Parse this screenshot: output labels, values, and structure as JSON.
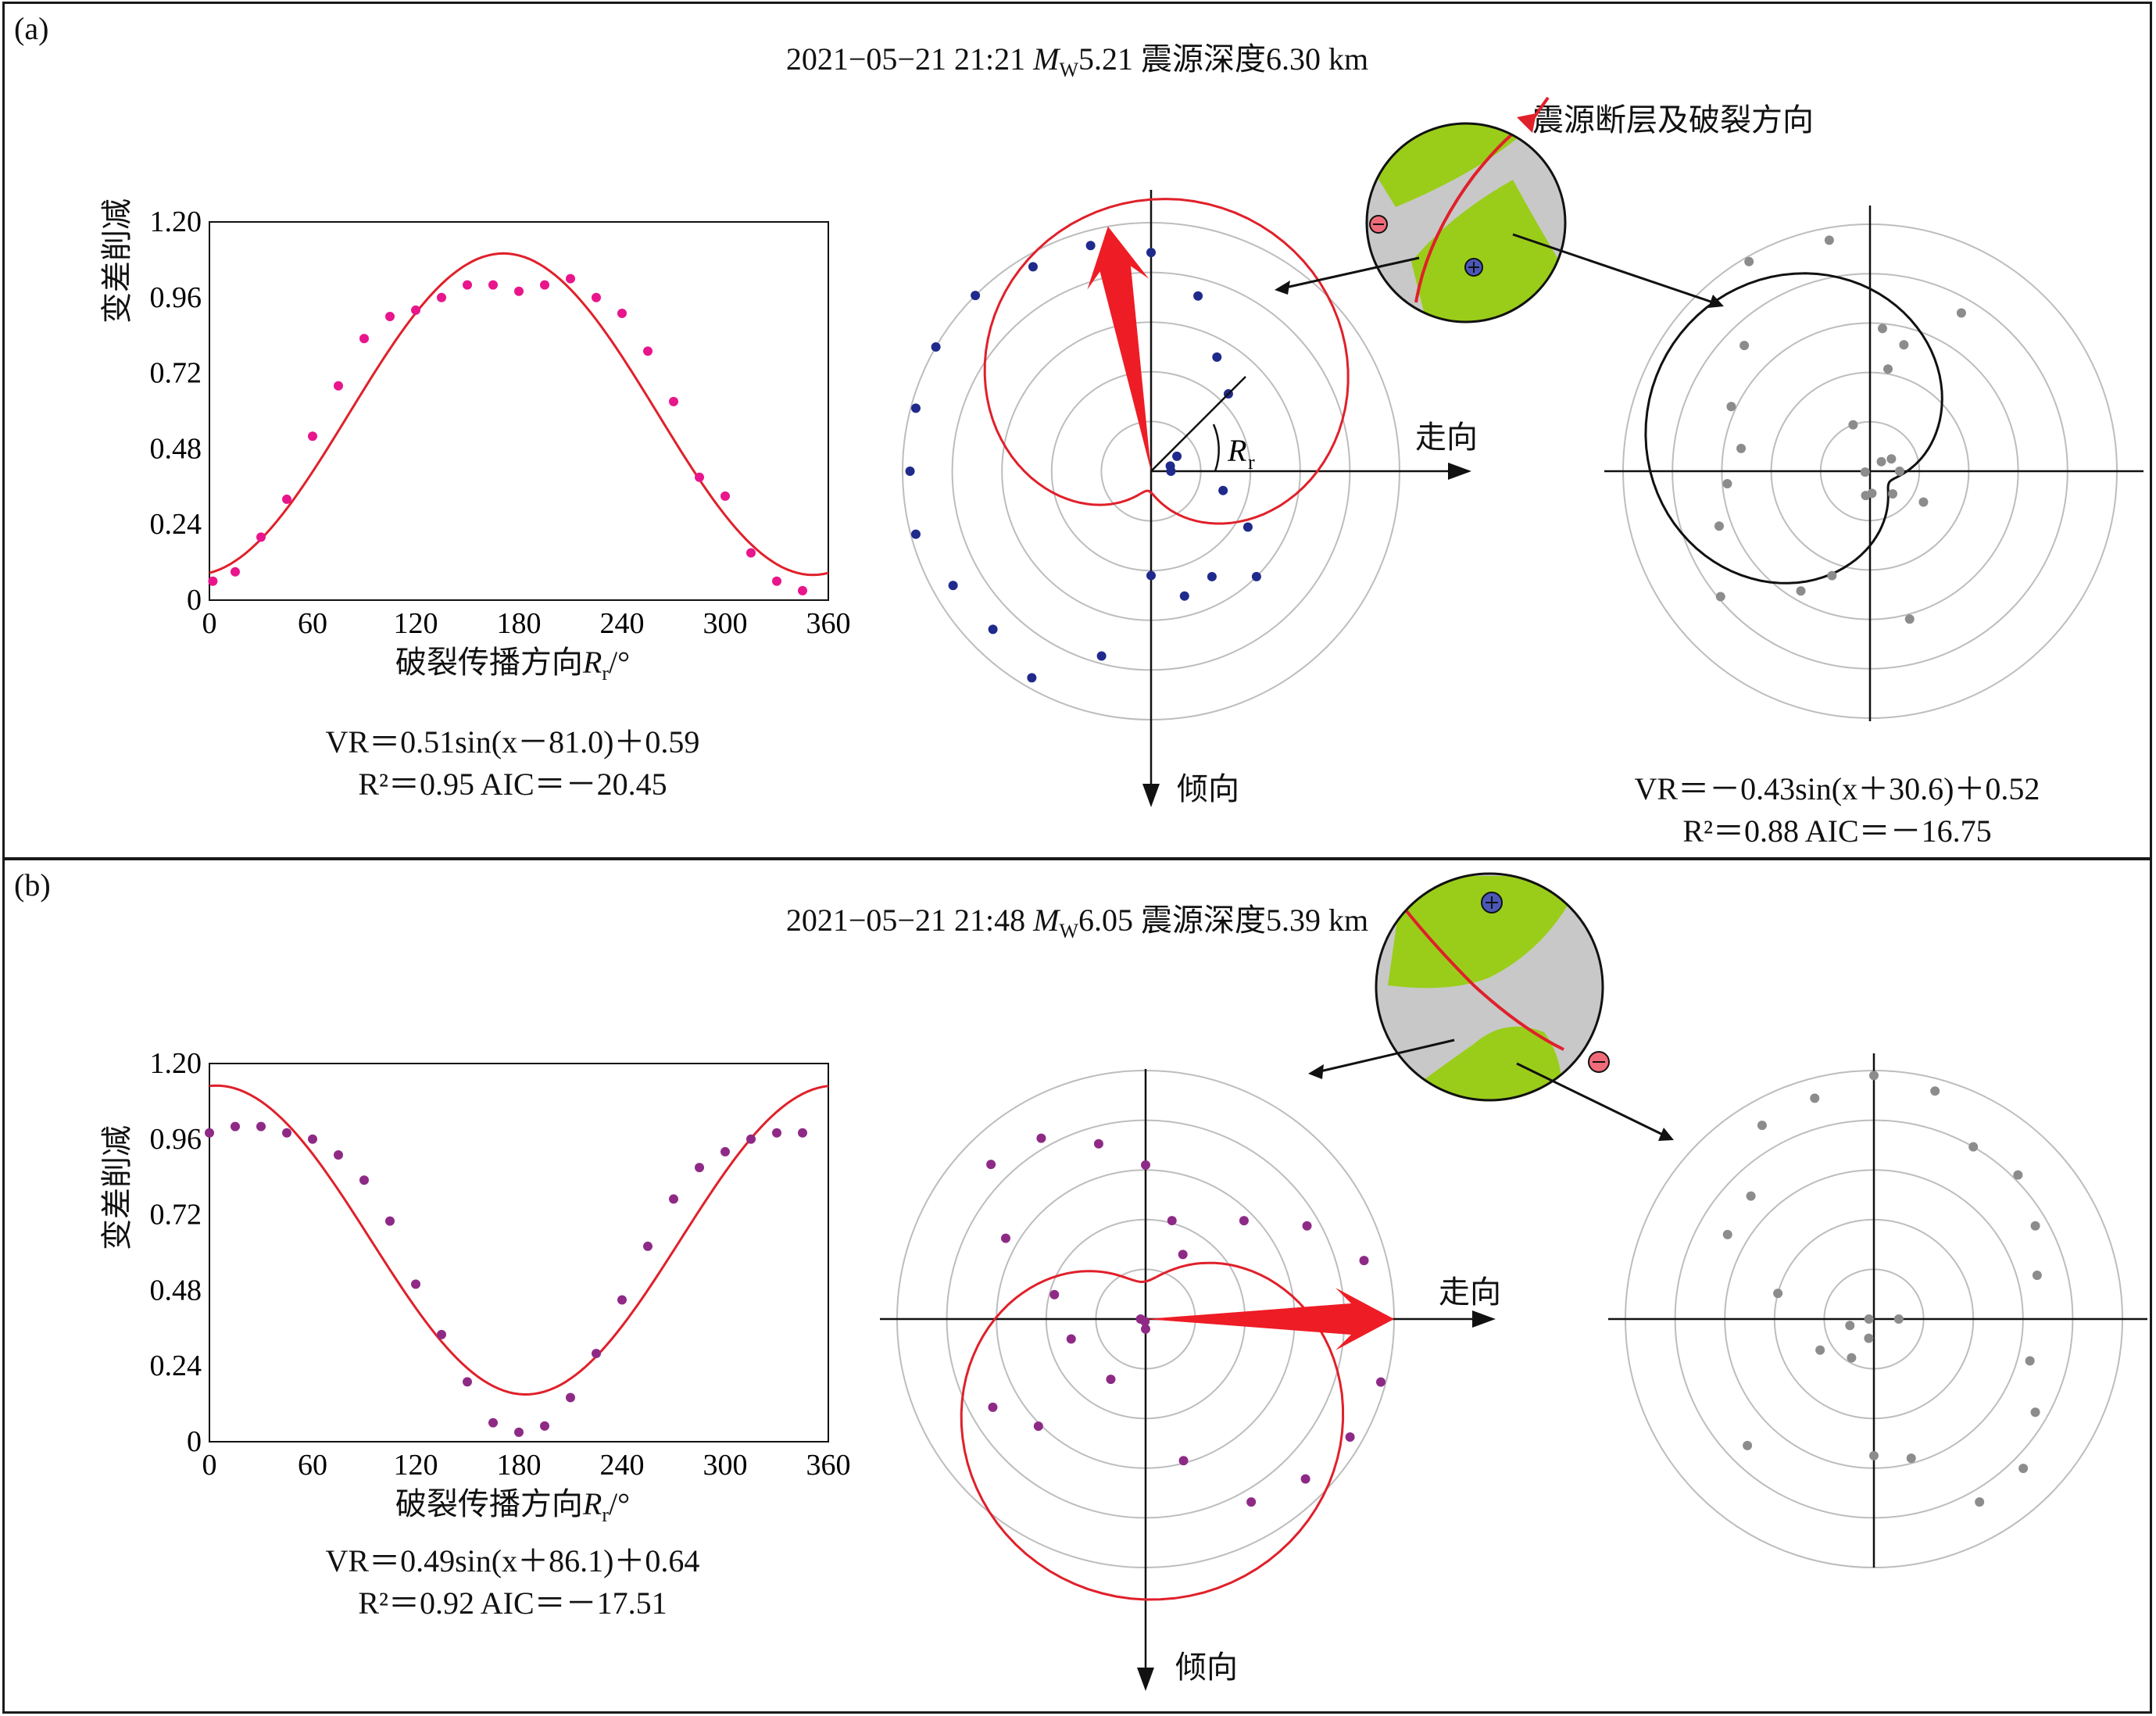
{
  "colors": {
    "fit_curve": "#e0202a",
    "arrow": "#ee1c25",
    "points_a_line": "#e8158c",
    "points_a_polar": "#1f2a8c",
    "points_b": "#8e2a86",
    "points_gray": "#8c8c8c",
    "ring": "#bdbdbd",
    "beach_green": "#9acd1a",
    "beach_gray": "#c8c8c8",
    "black_curve": "#111111"
  },
  "labels": {
    "y_axis": "变差削减",
    "x_axis_cn": "破裂传播方向",
    "x_axis_sym": "R",
    "x_axis_sub": "r",
    "x_axis_unit": "/°",
    "strike": "走向",
    "dip": "倾向",
    "rr_sym": "R",
    "rr_sub": "r",
    "fault_callout": "震源断层及破裂方向"
  },
  "panels": {
    "a": {
      "label": "(a)",
      "title_pre": "2021−05−21 21:21  ",
      "title_mw": "M",
      "title_mw_sub": "W",
      "title_post": "5.21  震源深度6.30 km",
      "eq_line1": "VR＝0.51sin(x－81.0)＋0.59",
      "eq_line2": "R²＝0.95    AIC＝－20.45",
      "eq2_line1": "VR＝－0.43sin(x＋30.6)＋0.52",
      "eq2_line2": "R²＝0.88        AIC＝－16.75"
    },
    "b": {
      "label": "(b)",
      "title_pre": "2021−05−21 21:48  ",
      "title_mw": "M",
      "title_mw_sub": "W",
      "title_post": "6.05  震源深度5.39 km",
      "eq_line1": "VR＝0.49sin(x＋86.1)＋0.64",
      "eq_line2": "R²＝0.92     AIC＝－17.51"
    }
  },
  "chart_data": [
    {
      "id": "a-line",
      "type": "scatter",
      "xlabel": "破裂传播方向Rr/°",
      "ylabel": "变差削减",
      "xlim": [
        0,
        360
      ],
      "ylim": [
        0,
        1.2
      ],
      "xticks": [
        "0",
        "60",
        "120",
        "180",
        "240",
        "300",
        "360"
      ],
      "yticks": [
        "0",
        "0.24",
        "0.48",
        "0.72",
        "0.96",
        "1.20"
      ],
      "points": [
        [
          2,
          0.06
        ],
        [
          15,
          0.09
        ],
        [
          30,
          0.2
        ],
        [
          45,
          0.32
        ],
        [
          60,
          0.52
        ],
        [
          75,
          0.68
        ],
        [
          90,
          0.83
        ],
        [
          105,
          0.9
        ],
        [
          120,
          0.92
        ],
        [
          135,
          0.96
        ],
        [
          150,
          1.0
        ],
        [
          165,
          1.0
        ],
        [
          180,
          0.98
        ],
        [
          195,
          1.0
        ],
        [
          210,
          1.02
        ],
        [
          225,
          0.96
        ],
        [
          240,
          0.91
        ],
        [
          255,
          0.79
        ],
        [
          270,
          0.63
        ],
        [
          285,
          0.39
        ],
        [
          300,
          0.33
        ],
        [
          315,
          0.15
        ],
        [
          330,
          0.06
        ],
        [
          345,
          0.03
        ]
      ],
      "fit": {
        "amplitude": 0.51,
        "phase": -81.0,
        "offset": 0.59
      }
    },
    {
      "id": "a-polar-fit",
      "type": "polar",
      "points": [
        [
          0,
          0.42
        ],
        [
          15,
          0.52
        ],
        [
          30,
          0.49
        ],
        [
          45,
          0.6
        ],
        [
          60,
          0.45
        ],
        [
          75,
          0.3
        ],
        [
          90,
          0.08
        ],
        [
          105,
          0.08
        ],
        [
          120,
          0.12
        ],
        [
          135,
          0.44
        ],
        [
          150,
          0.53
        ],
        [
          165,
          0.73
        ],
        [
          180,
          0.88
        ],
        [
          195,
          0.94
        ],
        [
          210,
          0.95
        ],
        [
          225,
          1.0
        ],
        [
          240,
          1.0
        ],
        [
          255,
          0.98
        ],
        [
          270,
          0.97
        ],
        [
          285,
          0.98
        ],
        [
          300,
          0.92
        ],
        [
          315,
          0.9
        ],
        [
          330,
          0.96
        ],
        [
          345,
          0.77
        ]
      ],
      "fit": {
        "amplitude": 0.51,
        "phase": -81.0,
        "offset": 0.59
      },
      "arrow_azimuth_deg": 190
    },
    {
      "id": "a-polar-gray",
      "type": "polar",
      "points": [
        [
          5,
          0.09
        ],
        [
          45,
          0.13
        ],
        [
          90,
          0.12
        ],
        [
          120,
          0.1
        ],
        [
          130,
          0.06
        ],
        [
          150,
          0.74
        ],
        [
          165,
          0.53
        ],
        [
          175,
          0.58
        ],
        [
          190,
          0.95
        ],
        [
          210,
          0.98
        ],
        [
          225,
          0.72
        ],
        [
          245,
          0.62
        ],
        [
          260,
          0.53
        ],
        [
          275,
          0.58
        ],
        [
          290,
          0.65
        ],
        [
          310,
          0.79
        ],
        [
          330,
          0.56
        ],
        [
          340,
          0.45
        ],
        [
          350,
          0.1
        ],
        [
          15,
          0.62
        ],
        [
          170,
          0.42
        ],
        [
          200,
          0.2
        ],
        [
          280,
          0.02
        ],
        [
          60,
          0.25
        ]
      ],
      "fit": {
        "amplitude": -0.43,
        "phase": 30.6,
        "offset": 0.52
      }
    },
    {
      "id": "b-line",
      "type": "scatter",
      "xlabel": "破裂传播方向Rr/°",
      "ylabel": "变差削减",
      "xlim": [
        0,
        360
      ],
      "ylim": [
        0,
        1.2
      ],
      "xticks": [
        "0",
        "60",
        "120",
        "180",
        "240",
        "300",
        "360"
      ],
      "yticks": [
        "0",
        "0.24",
        "0.48",
        "0.72",
        "0.96",
        "1.20"
      ],
      "points": [
        [
          0,
          0.98
        ],
        [
          15,
          1.0
        ],
        [
          30,
          1.0
        ],
        [
          45,
          0.98
        ],
        [
          60,
          0.96
        ],
        [
          75,
          0.91
        ],
        [
          90,
          0.83
        ],
        [
          105,
          0.7
        ],
        [
          120,
          0.5
        ],
        [
          135,
          0.34
        ],
        [
          150,
          0.19
        ],
        [
          165,
          0.06
        ],
        [
          180,
          0.03
        ],
        [
          195,
          0.05
        ],
        [
          210,
          0.14
        ],
        [
          225,
          0.28
        ],
        [
          240,
          0.45
        ],
        [
          255,
          0.62
        ],
        [
          270,
          0.77
        ],
        [
          285,
          0.87
        ],
        [
          300,
          0.92
        ],
        [
          315,
          0.96
        ],
        [
          330,
          0.98
        ],
        [
          345,
          0.98
        ]
      ],
      "fit": {
        "amplitude": 0.49,
        "phase": 86.1,
        "offset": 0.64
      }
    },
    {
      "id": "b-polar-fit",
      "type": "polar",
      "points": [
        [
          0,
          0.04
        ],
        [
          15,
          0.59
        ],
        [
          30,
          0.85
        ],
        [
          45,
          0.91
        ],
        [
          60,
          0.95
        ],
        [
          75,
          0.98
        ],
        [
          90,
          0.96
        ],
        [
          105,
          0.91
        ],
        [
          120,
          0.75
        ],
        [
          135,
          0.56
        ],
        [
          150,
          0.3
        ],
        [
          165,
          0.41
        ],
        [
          180,
          0.62
        ],
        [
          195,
          0.73
        ],
        [
          210,
          0.84
        ],
        [
          225,
          0.88
        ],
        [
          240,
          0.65
        ],
        [
          255,
          0.38
        ],
        [
          270,
          0.02
        ],
        [
          285,
          0.31
        ],
        [
          300,
          0.71
        ],
        [
          315,
          0.61
        ],
        [
          330,
          0.28
        ],
        [
          345,
          0.01
        ]
      ],
      "fit": {
        "amplitude": 0.49,
        "phase": 86.1,
        "offset": 0.64
      },
      "arrow_azimuth_deg": 90
    },
    {
      "id": "b-polar-gray",
      "type": "polar",
      "points": [
        [
          0,
          0.55
        ],
        [
          15,
          0.58
        ],
        [
          30,
          0.85
        ],
        [
          45,
          0.85
        ],
        [
          60,
          0.75
        ],
        [
          75,
          0.65
        ],
        [
          90,
          0.1
        ],
        [
          105,
          0.68
        ],
        [
          120,
          0.75
        ],
        [
          135,
          0.82
        ],
        [
          150,
          0.8
        ],
        [
          165,
          0.95
        ],
        [
          180,
          0.98
        ],
        [
          195,
          0.92
        ],
        [
          210,
          0.9
        ],
        [
          225,
          0.7
        ],
        [
          240,
          0.68
        ],
        [
          255,
          0.4
        ],
        [
          270,
          0.02
        ],
        [
          285,
          0.1
        ],
        [
          300,
          0.25
        ],
        [
          315,
          0.72
        ],
        [
          330,
          0.18
        ],
        [
          345,
          0.08
        ]
      ]
    }
  ]
}
